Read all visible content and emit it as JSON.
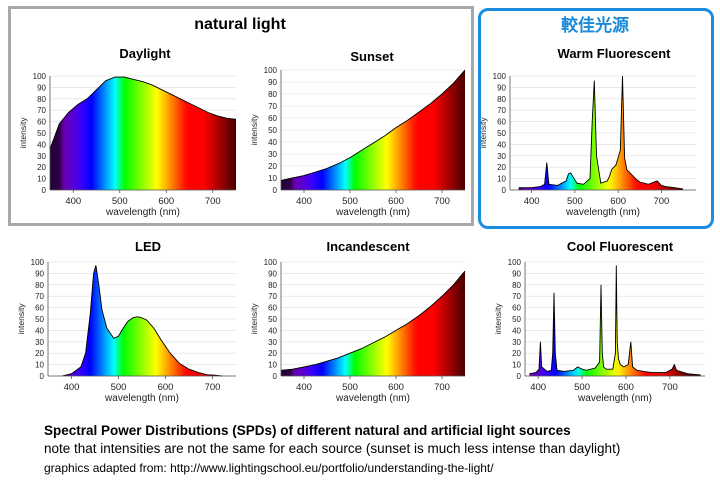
{
  "header": {
    "natural_title": "natural light",
    "highlight_title": "較佳光源"
  },
  "captions": {
    "line1": "Spectral Power Distributions (SPDs) of different natural and artificial light sources",
    "line2": "note that intensities are not the same for each source (sunset is much less intense than daylight)",
    "line3": "graphics adapted from: http://www.lightingschool.eu/portfolio/understanding-the-light/"
  },
  "chart_data": [
    {
      "type": "area",
      "title": "Daylight",
      "xlabel": "wavelength (nm)",
      "ylabel": "intensity",
      "xlim": [
        350,
        750
      ],
      "ylim": [
        0,
        100
      ],
      "xticks": [
        400,
        500,
        600,
        700
      ],
      "yticks": [
        0,
        10,
        20,
        30,
        40,
        50,
        60,
        70,
        80,
        90,
        100
      ],
      "fill": "spectrum",
      "x": [
        350,
        370,
        390,
        410,
        430,
        450,
        470,
        490,
        510,
        530,
        550,
        570,
        590,
        610,
        630,
        650,
        670,
        690,
        710,
        730,
        750
      ],
      "y": [
        36,
        58,
        68,
        75,
        80,
        88,
        96,
        99,
        99,
        97,
        95,
        92,
        88,
        84,
        80,
        76,
        72,
        68,
        65,
        63,
        62
      ]
    },
    {
      "type": "area",
      "title": "Sunset",
      "xlabel": "wavelength (nm)",
      "ylabel": "intensity",
      "xlim": [
        350,
        750
      ],
      "ylim": [
        0,
        100
      ],
      "xticks": [
        400,
        500,
        600,
        700
      ],
      "yticks": [
        0,
        10,
        20,
        30,
        40,
        50,
        60,
        70,
        80,
        90,
        100
      ],
      "fill": "spectrum",
      "x": [
        350,
        375,
        400,
        425,
        450,
        475,
        500,
        525,
        550,
        575,
        600,
        625,
        650,
        675,
        700,
        725,
        750
      ],
      "y": [
        8,
        10,
        12,
        15,
        18,
        22,
        27,
        33,
        39,
        45,
        52,
        58,
        65,
        72,
        80,
        89,
        103
      ]
    },
    {
      "type": "area",
      "title": "Warm Fluorescent",
      "xlabel": "wavelength (nm)",
      "ylabel": "intensity",
      "xlim": [
        350,
        780
      ],
      "ylim": [
        0,
        100
      ],
      "xticks": [
        400,
        500,
        600,
        700
      ],
      "yticks": [
        0,
        10,
        20,
        30,
        40,
        50,
        60,
        70,
        80,
        90,
        100
      ],
      "fill": "spectrum",
      "x": [
        370,
        400,
        420,
        430,
        435,
        440,
        460,
        480,
        485,
        490,
        495,
        505,
        520,
        535,
        540,
        545,
        550,
        560,
        575,
        580,
        585,
        595,
        605,
        610,
        615,
        620,
        630,
        640,
        650,
        670,
        690,
        700,
        710,
        730,
        750
      ],
      "y": [
        2,
        2,
        3,
        5,
        24,
        5,
        4,
        8,
        14,
        15,
        12,
        6,
        5,
        10,
        60,
        96,
        30,
        6,
        8,
        12,
        18,
        22,
        35,
        100,
        28,
        18,
        14,
        10,
        7,
        5,
        8,
        4,
        3,
        2,
        1
      ]
    },
    {
      "type": "area",
      "title": "LED",
      "xlabel": "wavelength (nm)",
      "ylabel": "intensity",
      "xlim": [
        350,
        750
      ],
      "ylim": [
        0,
        100
      ],
      "xticks": [
        400,
        500,
        600,
        700
      ],
      "yticks": [
        0,
        10,
        20,
        30,
        40,
        50,
        60,
        70,
        80,
        90,
        100
      ],
      "fill": "spectrum",
      "x": [
        380,
        400,
        420,
        430,
        440,
        447,
        452,
        458,
        465,
        475,
        490,
        500,
        510,
        520,
        530,
        540,
        550,
        560,
        575,
        590,
        610,
        630,
        650,
        670,
        690,
        700,
        720
      ],
      "y": [
        0,
        2,
        8,
        20,
        55,
        90,
        97,
        80,
        58,
        42,
        33,
        35,
        42,
        48,
        51,
        52,
        51,
        49,
        42,
        32,
        20,
        11,
        6,
        3,
        1,
        1,
        0
      ]
    },
    {
      "type": "area",
      "title": "Incandescent",
      "xlabel": "wavelength (nm)",
      "ylabel": "intensity",
      "xlim": [
        350,
        750
      ],
      "ylim": [
        0,
        100
      ],
      "xticks": [
        400,
        500,
        600,
        700
      ],
      "yticks": [
        0,
        10,
        20,
        30,
        40,
        50,
        60,
        70,
        80,
        90,
        100
      ],
      "fill": "spectrum",
      "x": [
        350,
        375,
        400,
        425,
        450,
        475,
        500,
        525,
        550,
        575,
        600,
        625,
        650,
        675,
        700,
        725,
        750
      ],
      "y": [
        5,
        6,
        8,
        10,
        13,
        16,
        20,
        24,
        29,
        34,
        40,
        46,
        53,
        61,
        70,
        80,
        92
      ]
    },
    {
      "type": "area",
      "title": "Cool Fluorescent",
      "xlabel": "wavelength (nm)",
      "ylabel": "intensity",
      "xlim": [
        370,
        780
      ],
      "ylim": [
        0,
        100
      ],
      "xticks": [
        400,
        500,
        600,
        700
      ],
      "yticks": [
        0,
        10,
        20,
        30,
        40,
        50,
        60,
        70,
        80,
        90,
        100
      ],
      "fill": "spectrum",
      "x": [
        380,
        395,
        402,
        405,
        408,
        420,
        430,
        433,
        436,
        439,
        443,
        460,
        480,
        490,
        500,
        510,
        530,
        540,
        543,
        546,
        549,
        555,
        570,
        576,
        578,
        580,
        583,
        587,
        595,
        605,
        611,
        615,
        625,
        640,
        660,
        690,
        705,
        710,
        715,
        740,
        770
      ],
      "y": [
        2,
        3,
        6,
        30,
        8,
        4,
        5,
        20,
        73,
        20,
        5,
        4,
        5,
        8,
        6,
        5,
        7,
        12,
        80,
        20,
        8,
        6,
        6,
        20,
        97,
        30,
        15,
        10,
        8,
        10,
        30,
        8,
        5,
        4,
        3,
        3,
        6,
        10,
        5,
        2,
        1
      ]
    }
  ]
}
